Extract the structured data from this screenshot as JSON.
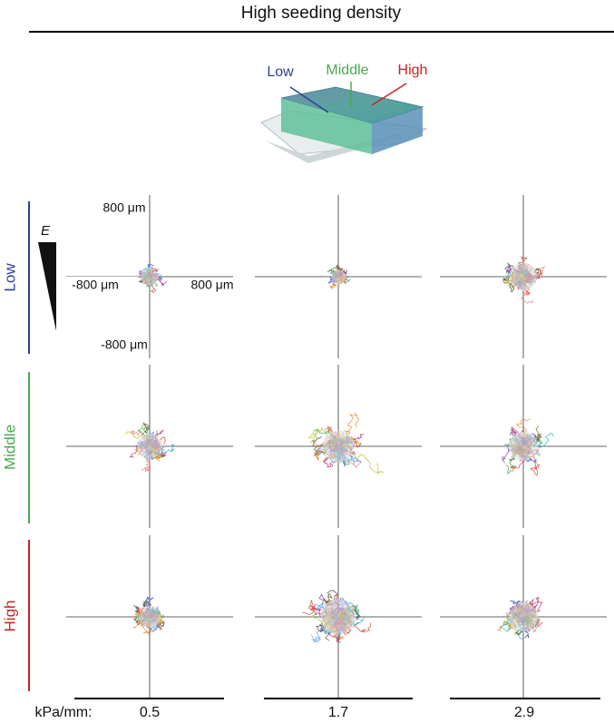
{
  "title": "High seeding density",
  "schematic": {
    "labels": [
      "Low",
      "Middle",
      "High"
    ]
  },
  "stiffness_symbol": "E",
  "axis_labels": {
    "top": "800 μm",
    "bottom": "-800 μm",
    "left": "-800 μm",
    "right": "800 μm"
  },
  "rows": [
    "Low",
    "Middle",
    "High"
  ],
  "columns": {
    "unit": "kPa/mm:",
    "values": [
      0.5,
      1.7,
      2.9
    ]
  }
}
